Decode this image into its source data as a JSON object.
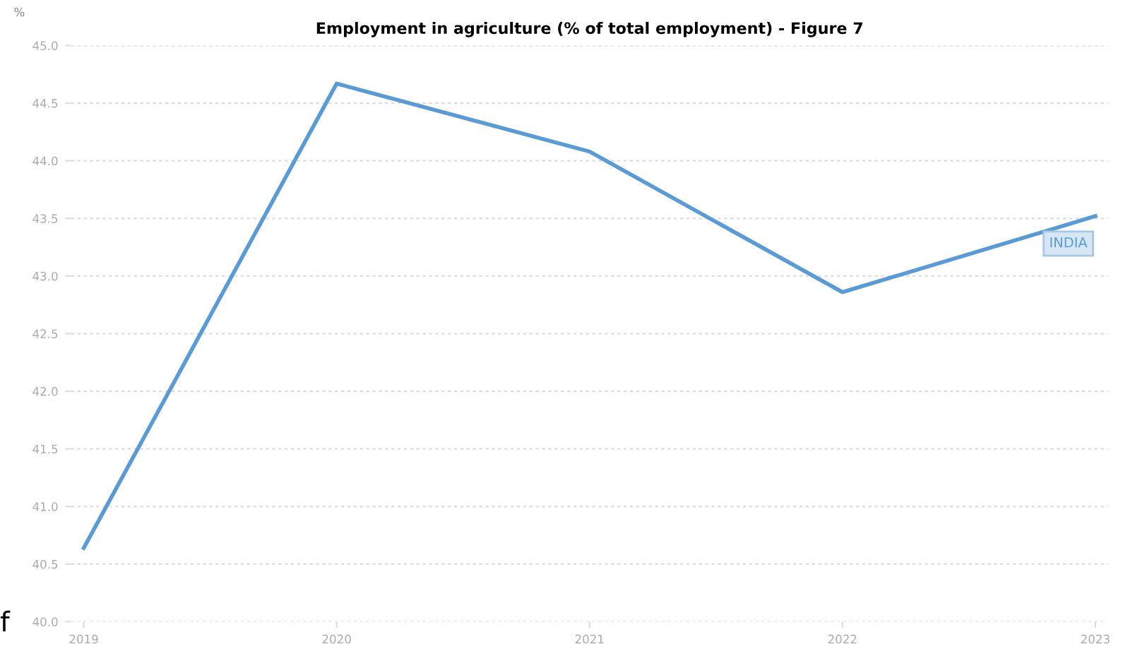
{
  "chart_data": {
    "type": "line",
    "title": "Employment in agriculture (% of total employment) - Figure 7",
    "ylabel": "%",
    "categories": [
      "2019",
      "2020",
      "2021",
      "2022",
      "2023"
    ],
    "series": [
      {
        "name": "INDIA",
        "color": "#5b9bd5",
        "values": [
          40.64,
          44.67,
          44.08,
          42.86,
          43.52
        ]
      }
    ],
    "ylim": [
      40.0,
      45.0
    ],
    "yticks": [
      {
        "value": 40.0,
        "label": "40.0"
      },
      {
        "value": 40.5,
        "label": "40.5"
      },
      {
        "value": 41.0,
        "label": "41.0"
      },
      {
        "value": 41.5,
        "label": "41.5"
      },
      {
        "value": 42.0,
        "label": "42.0"
      },
      {
        "value": 42.5,
        "label": "42.5"
      },
      {
        "value": 43.0,
        "label": "43.0"
      },
      {
        "value": 43.5,
        "label": "43.5"
      },
      {
        "value": 44.0,
        "label": "44.0"
      },
      {
        "value": 44.5,
        "label": "44.5"
      },
      {
        "value": 45.0,
        "label": "45.0"
      }
    ],
    "grid": "y",
    "annotations": [
      "f"
    ]
  }
}
